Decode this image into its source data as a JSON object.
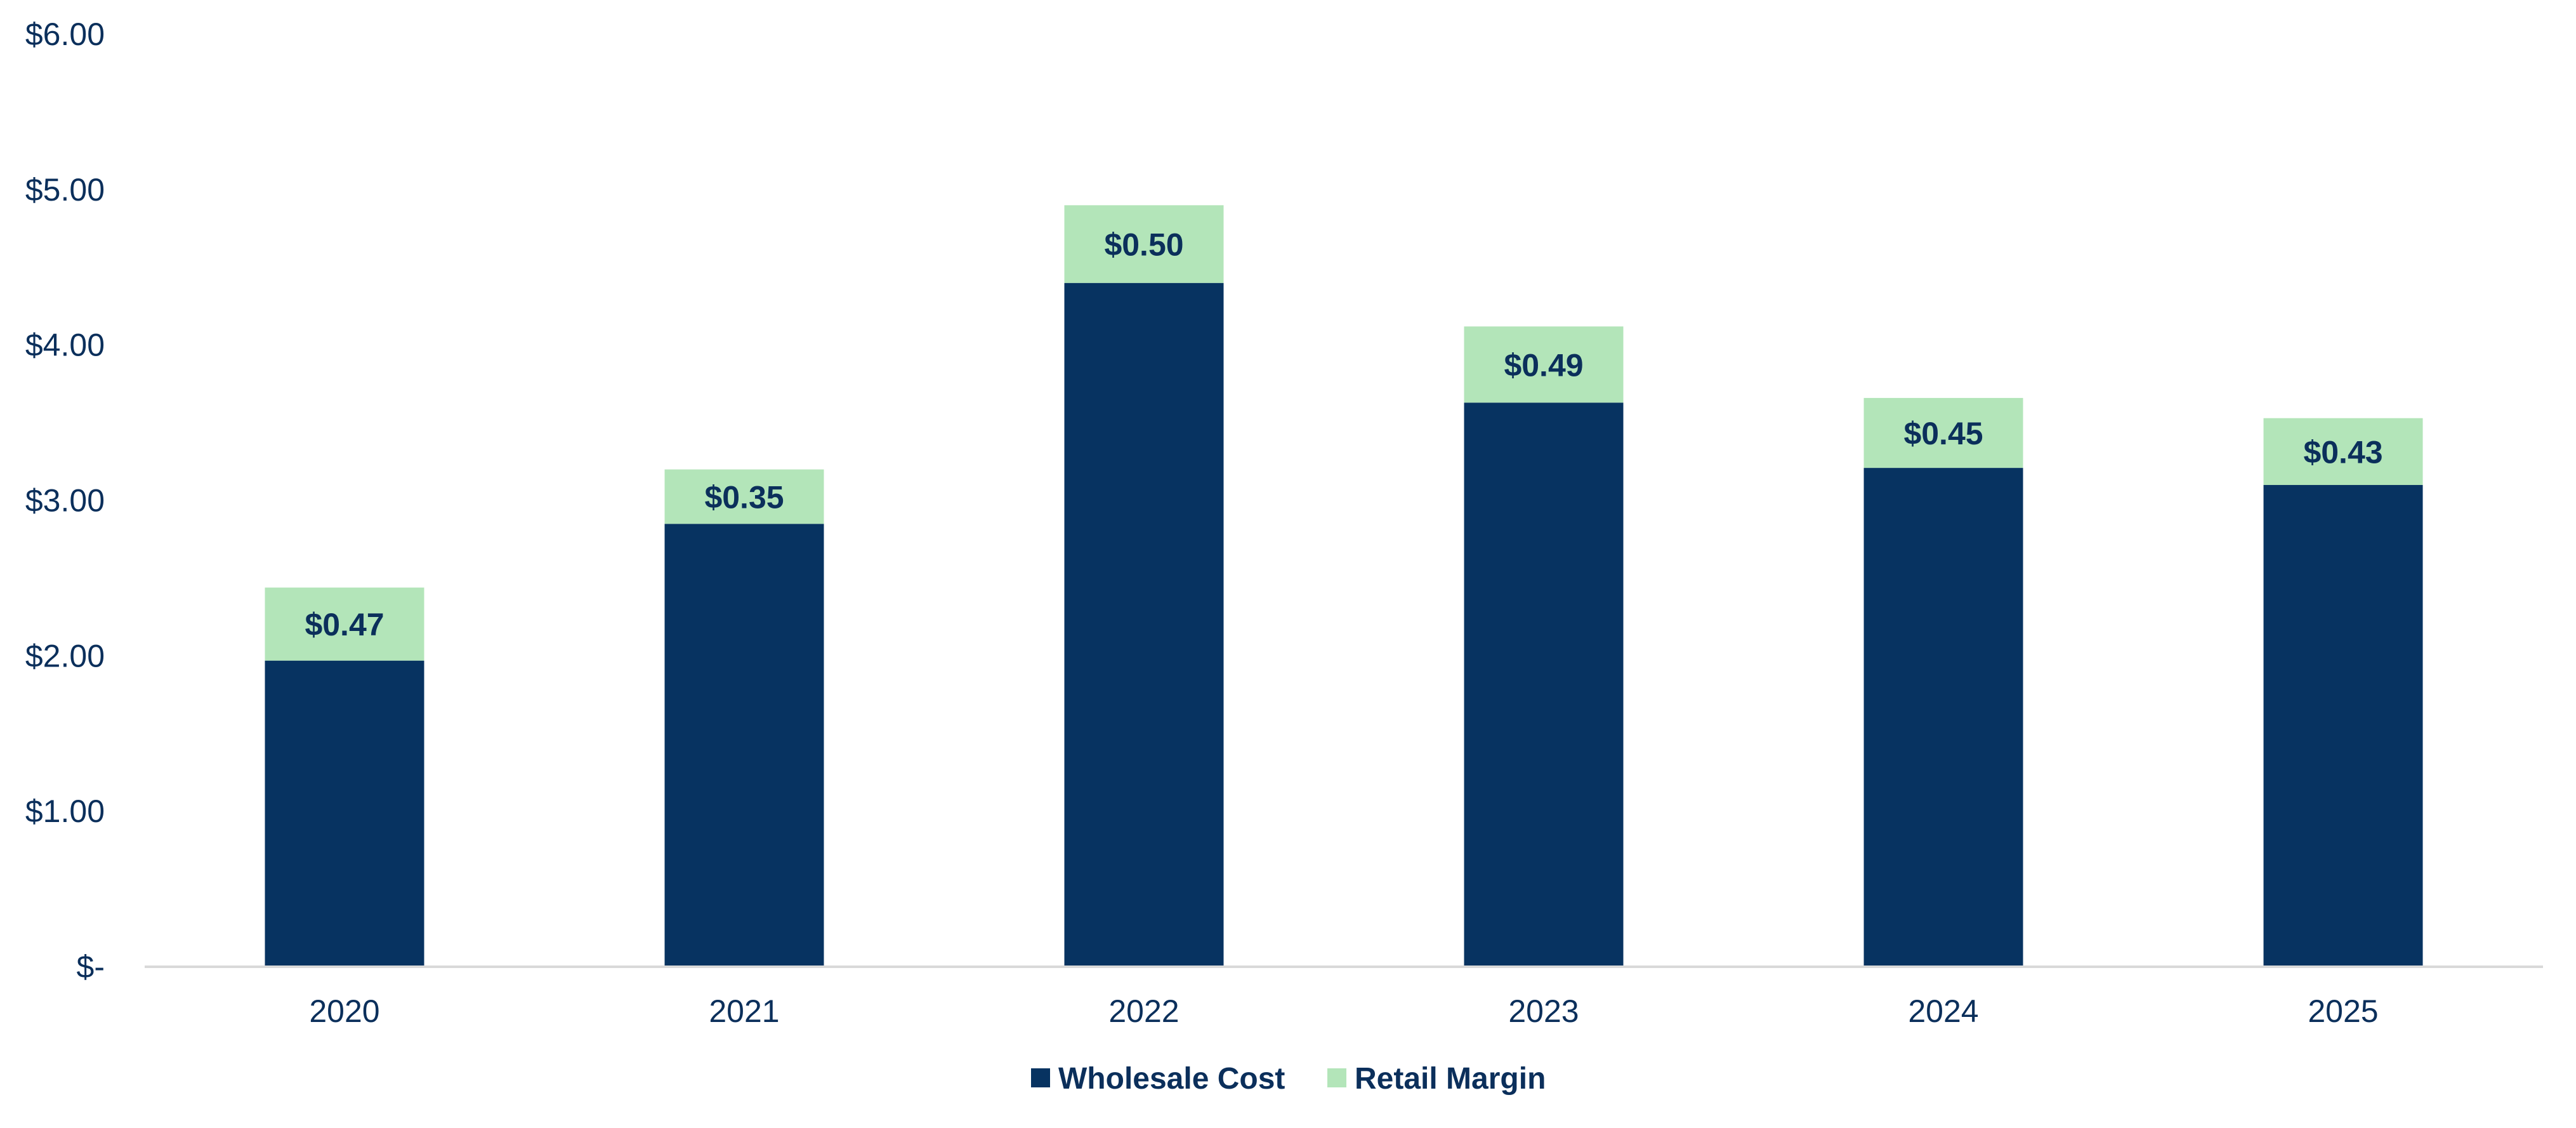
{
  "chart_data": {
    "type": "bar",
    "stacked": true,
    "title": "",
    "xlabel": "",
    "ylabel": "",
    "categories": [
      "2020",
      "2021",
      "2022",
      "2023",
      "2024",
      "2025"
    ],
    "series": [
      {
        "name": "Wholesale Cost",
        "color": "#073361",
        "values": [
          1.97,
          2.85,
          4.4,
          3.63,
          3.21,
          3.1
        ]
      },
      {
        "name": "Retail Margin",
        "color": "#B3E5B9",
        "values": [
          0.47,
          0.35,
          0.5,
          0.49,
          0.45,
          0.43
        ],
        "data_labels": [
          "$0.47",
          "$0.35",
          "$0.50",
          "$0.49",
          "$0.45",
          "$0.43"
        ]
      }
    ],
    "ylim": [
      0,
      6
    ],
    "yticks": [
      0,
      1,
      2,
      3,
      4,
      5,
      6
    ],
    "ytick_labels": [
      "$-",
      "$1.00",
      "$2.00",
      "$3.00",
      "$4.00",
      "$5.00",
      "$6.00"
    ],
    "grid": false,
    "legend_position": "bottom"
  }
}
